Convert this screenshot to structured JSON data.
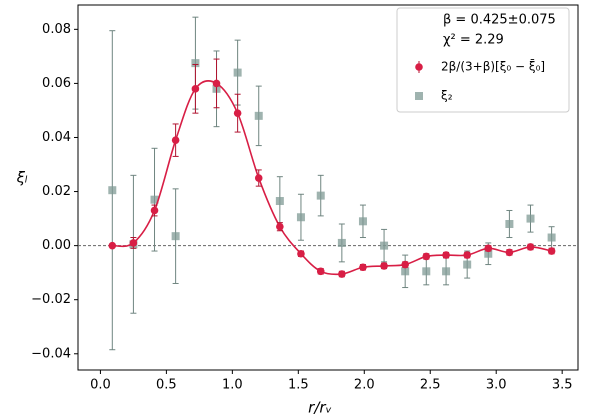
{
  "chart_data": {
    "type": "errorbar",
    "xlabel": "r/rᵥ",
    "ylabel": "ξₗ",
    "annotations": [
      "β = 0.425±0.075",
      "χ² = 2.29"
    ],
    "x": [
      0.09,
      0.25,
      0.41,
      0.57,
      0.72,
      0.88,
      1.04,
      1.2,
      1.36,
      1.52,
      1.67,
      1.83,
      1.99,
      2.15,
      2.31,
      2.47,
      2.62,
      2.78,
      2.94,
      3.1,
      3.26,
      3.42
    ],
    "series": [
      {
        "name": "2β/(3+β)[ξ₀ − ξ̄₀]",
        "color": "#d81e45",
        "marker": "circle",
        "smooth_line": true,
        "values": [
          0.0,
          0.001,
          0.013,
          0.039,
          0.058,
          0.06,
          0.049,
          0.025,
          0.007,
          -0.003,
          -0.0095,
          -0.0105,
          -0.008,
          -0.0075,
          -0.007,
          -0.004,
          -0.0035,
          -0.0035,
          -0.001,
          -0.0025,
          -0.0005,
          -0.002
        ],
        "errors": [
          0.0005,
          0.002,
          0.002,
          0.006,
          0.009,
          0.009,
          0.007,
          0.003,
          0.0015,
          0.001,
          0.001,
          0.001,
          0.001,
          0.001,
          0.001,
          0.001,
          0.001,
          0.001,
          0.001,
          0.001,
          0.001,
          0.001
        ]
      },
      {
        "name": "ξ₂",
        "color": "#7f9a94",
        "marker": "square",
        "values": [
          0.0205,
          0.0005,
          0.017,
          0.0035,
          0.0675,
          0.058,
          0.064,
          0.048,
          0.0165,
          0.0105,
          0.0185,
          0.001,
          0.009,
          0.0,
          -0.0095,
          -0.0095,
          -0.0095,
          -0.007,
          -0.003,
          0.008,
          0.01,
          0.003
        ],
        "errors": [
          0.059,
          0.0255,
          0.019,
          0.0175,
          0.017,
          0.014,
          0.012,
          0.011,
          0.009,
          0.0085,
          0.0075,
          0.007,
          0.006,
          0.006,
          0.006,
          0.005,
          0.005,
          0.005,
          0.004,
          0.005,
          0.005,
          0.004
        ]
      }
    ],
    "reference_line": 0,
    "xlim": [
      -0.17,
      3.62
    ],
    "ylim": [
      -0.046,
      0.089
    ],
    "xticks": [
      {
        "value": 0,
        "label": "0.0"
      },
      {
        "value": 0.5,
        "label": "0.5"
      },
      {
        "value": 1,
        "label": "1.0"
      },
      {
        "value": 1.5,
        "label": "1.5"
      },
      {
        "value": 2,
        "label": "2.0"
      },
      {
        "value": 2.5,
        "label": "2.5"
      },
      {
        "value": 3,
        "label": "3.0"
      },
      {
        "value": 3.5,
        "label": "3.5"
      }
    ],
    "yticks": [
      {
        "value": -0.04,
        "label": "−0.04"
      },
      {
        "value": -0.02,
        "label": "−0.02"
      },
      {
        "value": 0,
        "label": "0.00"
      },
      {
        "value": 0.02,
        "label": "0.02"
      },
      {
        "value": 0.04,
        "label": "0.04"
      },
      {
        "value": 0.06,
        "label": "0.06"
      },
      {
        "value": 0.08,
        "label": "0.08"
      }
    ],
    "legend": "upper right"
  }
}
